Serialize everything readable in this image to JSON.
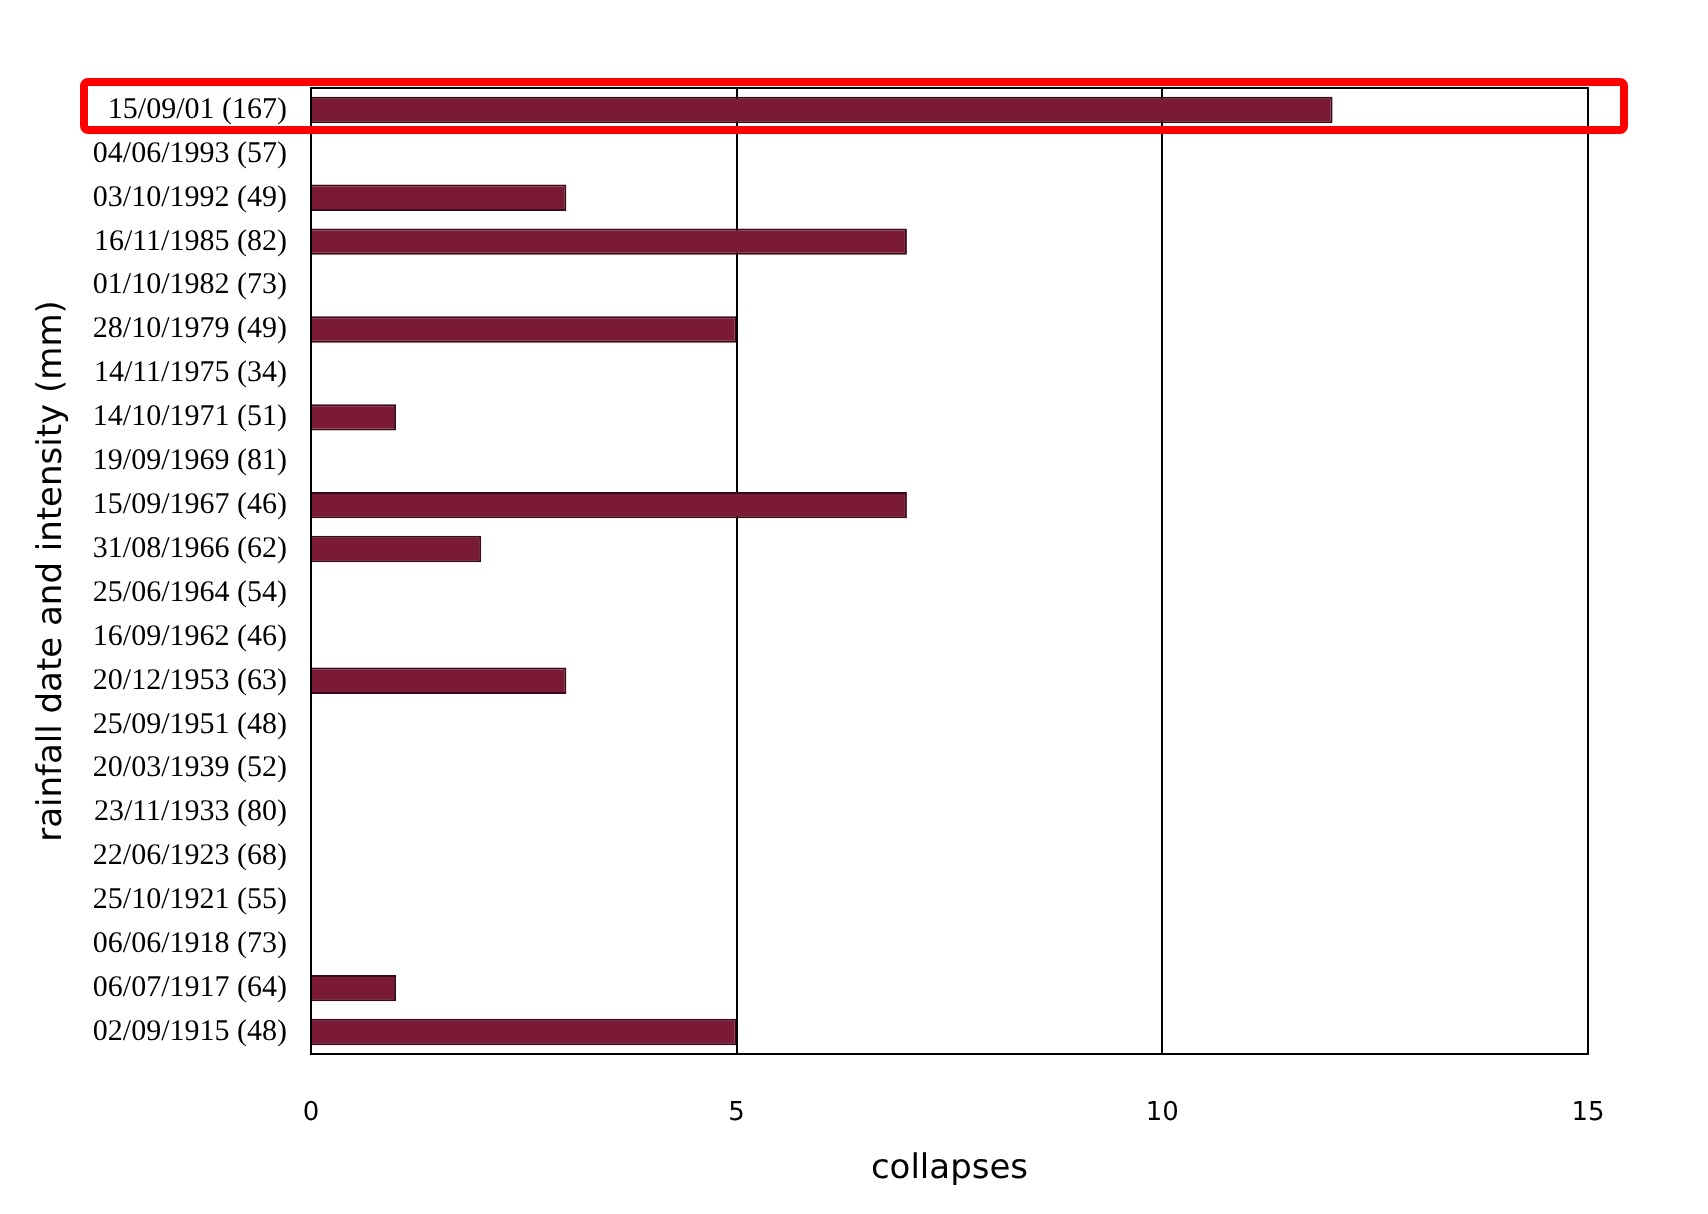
{
  "chart_data": {
    "type": "bar",
    "orientation": "horizontal",
    "xlabel": "collapses",
    "ylabel": "rainfall date and intensity (mm)",
    "categories": [
      "15/09/01 (167)",
      "04/06/1993 (57)",
      "03/10/1992 (49)",
      "16/11/1985 (82)",
      "01/10/1982 (73)",
      "28/10/1979 (49)",
      "14/11/1975 (34)",
      "14/10/1971 (51)",
      "19/09/1969 (81)",
      "15/09/1967 (46)",
      "31/08/1966 (62)",
      "25/06/1964 (54)",
      "16/09/1962 (46)",
      "20/12/1953 (63)",
      "25/09/1951 (48)",
      "20/03/1939 (52)",
      "23/11/1933 (80)",
      "22/06/1923 (68)",
      "25/10/1921 (55)",
      "06/06/1918 (73)",
      "06/07/1917 (64)",
      "02/09/1915 (48)"
    ],
    "values": [
      12,
      0,
      3,
      7,
      0,
      5,
      0,
      1,
      0,
      7,
      2,
      0,
      0,
      3,
      0,
      0,
      0,
      0,
      0,
      0,
      1,
      5
    ],
    "color": "#7b1a35",
    "xlim": [
      0,
      15
    ],
    "xticks": [
      0,
      5,
      10,
      15
    ],
    "grid": "x",
    "legend": false
  }
}
